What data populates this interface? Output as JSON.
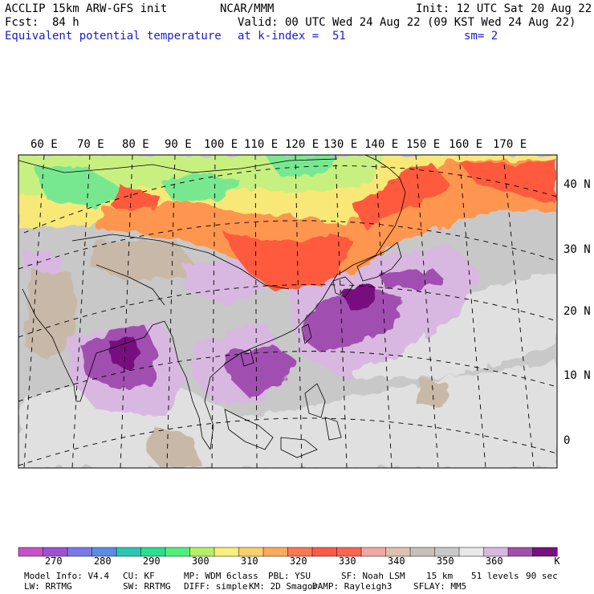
{
  "header": {
    "left_line1": "ACCLIP 15km ARW-GFS init",
    "center_line1": "NCAR/MMM",
    "right_line1": "Init: 12 UTC Sat 20 Aug 22",
    "left_line2": "Fcst:  84 h",
    "right_line2": "Valid: 00 UTC Wed 24 Aug 22 (09 KST Wed 24 Aug 22)",
    "field_name": "Equivalent potential temperature",
    "level_text": "at k-index =  51",
    "smooth_text": "sm= 2"
  },
  "map": {
    "lon_labels": [
      "60 E",
      "70 E",
      "80 E",
      "90 E",
      "100 E",
      "110 E",
      "120 E",
      "130 E",
      "140 E",
      "150 E",
      "160 E",
      "170 E"
    ],
    "lat_labels": [
      "40 N",
      "30 N",
      "20 N",
      "10 N",
      "0"
    ],
    "fill_colors": {
      "background_gray": "#c8c8c8",
      "light_gray": "#e0e0e0",
      "tan": "#c8b8a8",
      "orange_red": "#ff5a3c",
      "orange": "#ff9650",
      "yellow": "#f8e878",
      "yellow_green": "#c8f080",
      "green": "#78e890",
      "light_purple": "#d8b8e0",
      "purple": "#a050b0",
      "dark_purple": "#781080"
    }
  },
  "colorbar": {
    "colors": [
      "#c850c8",
      "#a050d8",
      "#7878e8",
      "#5a8ce8",
      "#28c8b4",
      "#28e090",
      "#50f078",
      "#b4f064",
      "#f8f078",
      "#ffd068",
      "#ffaa5a",
      "#ff7850",
      "#ff5a46",
      "#ff6450",
      "#f0a8a0",
      "#e0c0b0",
      "#c8c0b8",
      "#c8c8c8",
      "#e8e8e8",
      "#d8b8e0",
      "#a050a8",
      "#781080"
    ],
    "labels": [
      "270",
      "280",
      "290",
      "300",
      "310",
      "320",
      "330",
      "340",
      "350",
      "360"
    ],
    "unit": "K"
  },
  "footer": {
    "line1": [
      "Model Info: V4.4",
      "CU: KF",
      "MP: WDM 6class",
      "PBL: YSU",
      "SF: Noah LSM",
      "15 km",
      "51 levels",
      "90 sec"
    ],
    "line2": [
      "LW: RRTMG",
      "SW: RRTMG",
      "DIFF: simple",
      "KM: 2D Smagor",
      "DAMP: Rayleigh3",
      "SFLAY: MM5"
    ]
  }
}
